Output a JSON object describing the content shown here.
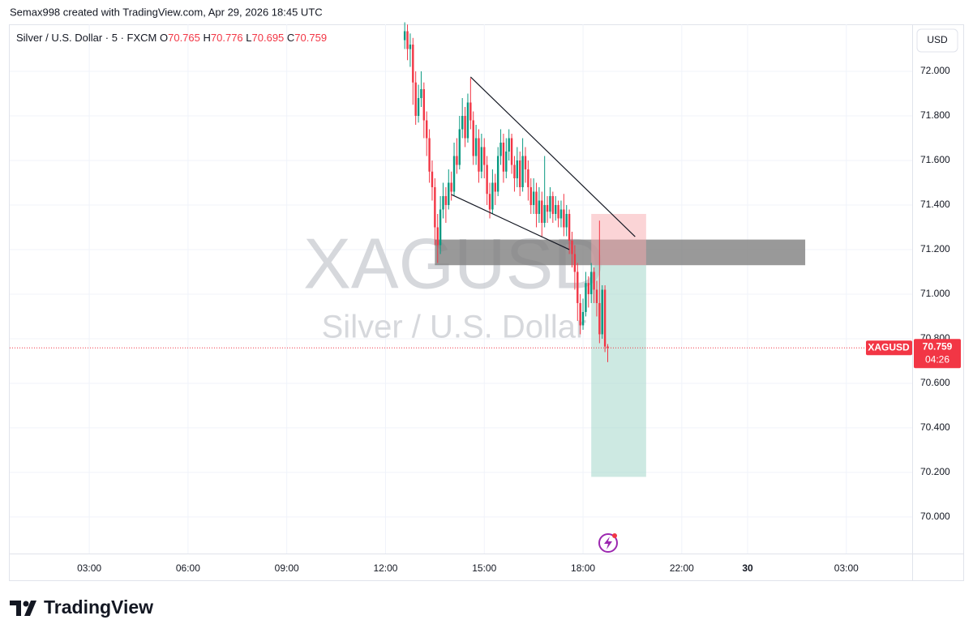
{
  "chart_data": {
    "type": "candlestick",
    "title": "Semax998 created with TradingView.com, Apr 29, 2026 18:45 UTC",
    "legend_title": "Silver / U.S. Dollar · 5 · FXCM",
    "ohlc_letters": [
      "O",
      "H",
      "L",
      "C"
    ],
    "symbol": "XAGUSD",
    "instrument_name": "Silver / U.S. Dollar",
    "currency": "USD",
    "countdown": "04:26",
    "brand": "TradingView",
    "up_color": "#089981",
    "down_color": "#f23645",
    "grid": true,
    "xlim": [
      7,
      336
    ],
    "ylim": [
      69.836,
      72.211
    ],
    "xticks": [
      {
        "value": 36,
        "label": "03:00"
      },
      {
        "value": 72,
        "label": "06:00"
      },
      {
        "value": 108,
        "label": "09:00"
      },
      {
        "value": 144,
        "label": "12:00"
      },
      {
        "value": 180,
        "label": "15:00"
      },
      {
        "value": 216,
        "label": "18:00"
      },
      {
        "value": 252,
        "label": "22:00"
      },
      {
        "value": 276,
        "label": "30"
      },
      {
        "value": 312,
        "label": "03:00"
      }
    ],
    "yticks": [
      {
        "value": 70,
        "label": "70.000"
      },
      {
        "value": 70.2,
        "label": "70.200"
      },
      {
        "value": 70.4,
        "label": "70.400"
      },
      {
        "value": 70.6,
        "label": "70.600"
      },
      {
        "value": 70.8,
        "label": "70.800"
      },
      {
        "value": 71,
        "label": "71.000"
      },
      {
        "value": 71.2,
        "label": "71.200"
      },
      {
        "value": 71.4,
        "label": "71.400"
      },
      {
        "value": 71.6,
        "label": "71.600"
      },
      {
        "value": 71.8,
        "label": "71.800"
      },
      {
        "value": 72,
        "label": "72.000"
      }
    ],
    "x": [
      151,
      152,
      153,
      154,
      155,
      156,
      157,
      158,
      159,
      160,
      161,
      162,
      163,
      164,
      165,
      166,
      167,
      168,
      169,
      170,
      171,
      172,
      173,
      174,
      175,
      176,
      177,
      178,
      179,
      180,
      181,
      182,
      183,
      184,
      185,
      186,
      187,
      188,
      189,
      190,
      191,
      192,
      193,
      194,
      195,
      196,
      197,
      198,
      199,
      200,
      201,
      202,
      203,
      204,
      205,
      206,
      207,
      208,
      209,
      210,
      211,
      212,
      213,
      214,
      215,
      216,
      217,
      218,
      219,
      220,
      221,
      222,
      223,
      224,
      225
    ],
    "open": [
      72.14,
      72.18,
      72.1,
      72.12,
      71.95,
      71.8,
      71.88,
      71.92,
      71.78,
      71.7,
      71.55,
      71.48,
      71.3,
      71.22,
      71.38,
      71.44,
      71.4,
      71.5,
      71.46,
      71.62,
      71.58,
      71.74,
      71.8,
      71.7,
      71.86,
      71.78,
      71.62,
      71.7,
      71.55,
      71.66,
      71.58,
      71.45,
      71.38,
      71.5,
      71.46,
      71.62,
      71.68,
      71.55,
      71.64,
      71.7,
      71.58,
      71.52,
      71.6,
      71.48,
      71.62,
      71.56,
      71.48,
      71.4,
      71.46,
      71.36,
      71.42,
      71.32,
      71.4,
      71.37,
      71.44,
      71.36,
      71.4,
      71.34,
      71.38,
      71.3,
      71.36,
      71.24,
      71.18,
      71.1,
      70.96,
      70.86,
      70.92,
      71.05,
      71.0,
      71.1,
      71.02,
      70.96,
      70.82,
      71.02,
      70.765
    ],
    "high": [
      72.22,
      72.21,
      72.17,
      72.15,
      72.0,
      71.94,
      72.0,
      71.95,
      71.82,
      71.74,
      71.6,
      71.52,
      71.36,
      71.44,
      71.5,
      71.48,
      71.56,
      71.55,
      71.68,
      71.7,
      71.8,
      71.88,
      71.84,
      71.9,
      71.97,
      71.82,
      71.76,
      71.74,
      71.72,
      71.7,
      71.62,
      71.5,
      71.56,
      71.54,
      71.66,
      71.74,
      71.72,
      71.7,
      71.74,
      71.72,
      71.62,
      71.66,
      71.64,
      71.7,
      71.66,
      71.6,
      71.52,
      71.52,
      71.5,
      71.48,
      71.46,
      71.62,
      71.44,
      71.48,
      71.46,
      71.44,
      71.42,
      71.42,
      71.45,
      71.4,
      71.38,
      71.28,
      71.22,
      71.14,
      71.0,
      70.98,
      71.1,
      71.08,
      71.14,
      71.12,
      71.06,
      71.33,
      71.04,
      71.04,
      70.776
    ],
    "low": [
      72.1,
      72.05,
      72.02,
      71.85,
      71.76,
      71.77,
      71.84,
      71.7,
      71.62,
      71.5,
      71.42,
      71.22,
      71.14,
      71.18,
      71.34,
      71.32,
      71.38,
      71.42,
      71.44,
      71.54,
      71.56,
      71.7,
      71.66,
      71.68,
      71.74,
      71.58,
      71.58,
      71.5,
      71.52,
      71.52,
      71.4,
      71.34,
      71.36,
      71.4,
      71.44,
      71.58,
      71.5,
      71.52,
      71.6,
      71.54,
      71.46,
      71.48,
      71.44,
      71.46,
      71.5,
      71.42,
      71.36,
      71.36,
      71.3,
      71.32,
      71.26,
      71.3,
      71.32,
      71.34,
      71.32,
      71.33,
      71.3,
      71.3,
      71.26,
      71.26,
      71.18,
      71.12,
      71.02,
      70.88,
      70.82,
      70.84,
      70.9,
      70.94,
      70.96,
      70.96,
      70.9,
      70.78,
      70.8,
      70.74,
      70.695
    ],
    "close": [
      72.18,
      72.1,
      72.12,
      71.95,
      71.8,
      71.88,
      71.92,
      71.78,
      71.7,
      71.55,
      71.48,
      71.3,
      71.22,
      71.38,
      71.44,
      71.4,
      71.5,
      71.46,
      71.62,
      71.58,
      71.74,
      71.8,
      71.7,
      71.86,
      71.78,
      71.62,
      71.7,
      71.55,
      71.66,
      71.58,
      71.45,
      71.38,
      71.5,
      71.46,
      71.62,
      71.68,
      71.55,
      71.64,
      71.7,
      71.58,
      71.52,
      71.6,
      71.48,
      71.62,
      71.56,
      71.48,
      71.4,
      71.46,
      71.36,
      71.42,
      71.32,
      71.4,
      71.37,
      71.44,
      71.36,
      71.4,
      71.34,
      71.38,
      71.3,
      71.36,
      71.24,
      71.18,
      71.1,
      70.96,
      70.86,
      70.92,
      71.05,
      71.0,
      71.1,
      71.02,
      70.96,
      70.82,
      71.02,
      70.765,
      70.759
    ],
    "drawings": {
      "zone": {
        "x": [
          162,
          297
        ],
        "top": 71.245,
        "bottom": 71.13,
        "color": "#808080"
      },
      "stop_box": {
        "x": [
          219,
          239
        ],
        "top": 71.36,
        "bottom": 71.13,
        "color": "#f7a9ad"
      },
      "target_box": {
        "x": [
          219,
          239
        ],
        "top": 71.13,
        "bottom": 70.18,
        "color": "#9bd4c6"
      },
      "trendlines": [
        {
          "x": [
            175,
            235
          ],
          "y": [
            71.975,
            71.258
          ]
        },
        {
          "x": [
            168,
            211
          ],
          "y": [
            71.447,
            71.2
          ]
        }
      ]
    }
  }
}
